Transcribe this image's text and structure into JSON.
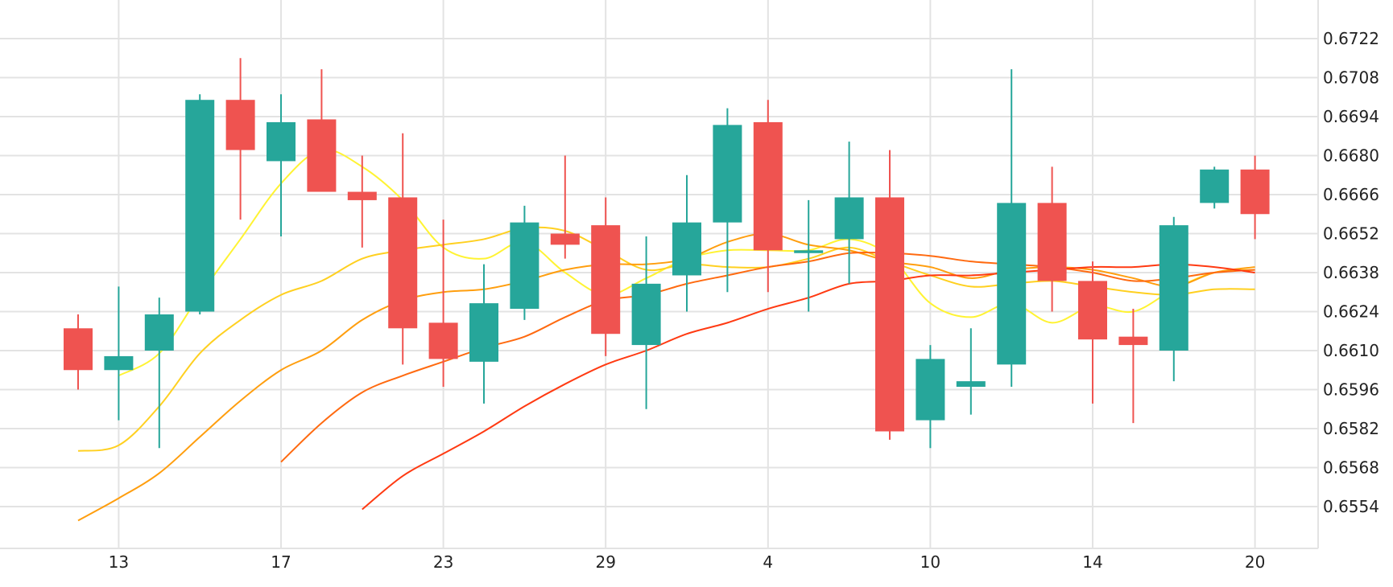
{
  "chart_data": {
    "type": "candlestick",
    "x_tick_labels": [
      "13",
      "17",
      "23",
      "29",
      "4",
      "10",
      "14",
      "20"
    ],
    "y_tick_labels": [
      "0.6722",
      "0.6708",
      "0.6694",
      "0.6680",
      "0.6666",
      "0.6652",
      "0.6638",
      "0.6624",
      "0.6610",
      "0.6596",
      "0.6582",
      "0.6568",
      "0.6554"
    ],
    "ylim": [
      0.654,
      0.6736
    ],
    "grid": true,
    "colors": {
      "up": "#26a69a",
      "down": "#ef5350"
    },
    "candles": [
      {
        "open": 0.6618,
        "high": 0.6623,
        "low": 0.6596,
        "close": 0.6603
      },
      {
        "open": 0.6603,
        "high": 0.6633,
        "low": 0.6585,
        "close": 0.6608
      },
      {
        "open": 0.661,
        "high": 0.6629,
        "low": 0.6575,
        "close": 0.6623
      },
      {
        "open": 0.6624,
        "high": 0.6702,
        "low": 0.6623,
        "close": 0.67
      },
      {
        "open": 0.67,
        "high": 0.6715,
        "low": 0.6657,
        "close": 0.6682
      },
      {
        "open": 0.6678,
        "high": 0.6702,
        "low": 0.6651,
        "close": 0.6692
      },
      {
        "open": 0.6693,
        "high": 0.6711,
        "low": 0.6668,
        "close": 0.6667
      },
      {
        "open": 0.6667,
        "high": 0.668,
        "low": 0.6647,
        "close": 0.6664
      },
      {
        "open": 0.6665,
        "high": 0.6688,
        "low": 0.6605,
        "close": 0.6618
      },
      {
        "open": 0.662,
        "high": 0.6657,
        "low": 0.6597,
        "close": 0.6607
      },
      {
        "open": 0.6606,
        "high": 0.6641,
        "low": 0.6591,
        "close": 0.6627
      },
      {
        "open": 0.6625,
        "high": 0.6662,
        "low": 0.6621,
        "close": 0.6656
      },
      {
        "open": 0.6652,
        "high": 0.668,
        "low": 0.6643,
        "close": 0.6648
      },
      {
        "open": 0.6655,
        "high": 0.6665,
        "low": 0.6608,
        "close": 0.6616
      },
      {
        "open": 0.6612,
        "high": 0.6651,
        "low": 0.6589,
        "close": 0.6634
      },
      {
        "open": 0.6637,
        "high": 0.6673,
        "low": 0.6624,
        "close": 0.6656
      },
      {
        "open": 0.6656,
        "high": 0.6697,
        "low": 0.6631,
        "close": 0.6691
      },
      {
        "open": 0.6692,
        "high": 0.67,
        "low": 0.6631,
        "close": 0.6646
      },
      {
        "open": 0.6645,
        "high": 0.6664,
        "low": 0.6624,
        "close": 0.6646
      },
      {
        "open": 0.665,
        "high": 0.6685,
        "low": 0.6634,
        "close": 0.6665
      },
      {
        "open": 0.6665,
        "high": 0.6682,
        "low": 0.6578,
        "close": 0.6581
      },
      {
        "open": 0.6585,
        "high": 0.6612,
        "low": 0.6575,
        "close": 0.6607
      },
      {
        "open": 0.6597,
        "high": 0.6618,
        "low": 0.6587,
        "close": 0.6599
      },
      {
        "open": 0.6605,
        "high": 0.6711,
        "low": 0.6597,
        "close": 0.6663
      },
      {
        "open": 0.6663,
        "high": 0.6676,
        "low": 0.6624,
        "close": 0.6635
      },
      {
        "open": 0.6635,
        "high": 0.6642,
        "low": 0.6591,
        "close": 0.6614
      },
      {
        "open": 0.6615,
        "high": 0.6625,
        "low": 0.6584,
        "close": 0.6612
      },
      {
        "open": 0.661,
        "high": 0.6658,
        "low": 0.6599,
        "close": 0.6655
      },
      {
        "open": 0.6663,
        "high": 0.6676,
        "low": 0.6661,
        "close": 0.6675
      },
      {
        "open": 0.6675,
        "high": 0.668,
        "low": 0.665,
        "close": 0.6659
      }
    ],
    "moving_averages": [
      {
        "color": "#fff333",
        "values": [
          null,
          0.6601,
          0.6609,
          0.663,
          0.665,
          0.667,
          0.6682,
          0.6676,
          0.6664,
          0.6647,
          0.6643,
          0.6649,
          0.6638,
          0.663,
          0.6636,
          0.6643,
          0.6646,
          0.6646,
          0.6646,
          0.665,
          0.6644,
          0.6627,
          0.6622,
          0.6627,
          0.662,
          0.6626,
          0.6624,
          0.6632,
          0.6638,
          0.6639
        ]
      },
      {
        "color": "#ffd020",
        "values": [
          0.6574,
          0.6576,
          0.659,
          0.6609,
          0.6621,
          0.663,
          0.6635,
          0.6643,
          0.6646,
          0.6648,
          0.665,
          0.6654,
          0.6653,
          0.6646,
          0.6639,
          0.6641,
          0.664,
          0.664,
          0.6643,
          0.6647,
          0.6642,
          0.6637,
          0.6633,
          0.6634,
          0.6635,
          0.6633,
          0.6631,
          0.663,
          0.6632,
          0.6632
        ]
      },
      {
        "color": "#ff9e0e",
        "values": [
          0.6549,
          0.6557,
          0.6566,
          0.6579,
          0.6592,
          0.6603,
          0.661,
          0.6621,
          0.6628,
          0.6631,
          0.6632,
          0.6635,
          0.6639,
          0.6641,
          0.6641,
          0.6643,
          0.6649,
          0.6652,
          0.6648,
          0.6646,
          0.6642,
          0.664,
          0.6636,
          0.6639,
          0.664,
          0.6639,
          0.6636,
          0.6633,
          0.6638,
          0.664
        ]
      },
      {
        "color": "#ff6a10",
        "values": [
          null,
          null,
          null,
          null,
          null,
          0.657,
          0.6584,
          0.6595,
          0.6601,
          0.6606,
          0.6611,
          0.6615,
          0.6622,
          0.6628,
          0.663,
          0.6634,
          0.6637,
          0.664,
          0.6642,
          0.6645,
          0.6645,
          0.6644,
          0.6642,
          0.6641,
          0.664,
          0.6638,
          0.6635,
          0.6636,
          0.6638,
          0.6639
        ]
      },
      {
        "color": "#ff3a12",
        "values": [
          null,
          null,
          null,
          null,
          null,
          null,
          null,
          0.6553,
          0.6565,
          0.6573,
          0.6581,
          0.659,
          0.6598,
          0.6605,
          0.661,
          0.6616,
          0.662,
          0.6625,
          0.6629,
          0.6634,
          0.6635,
          0.6637,
          0.6637,
          0.6638,
          0.6639,
          0.664,
          0.664,
          0.6641,
          0.664,
          0.6638
        ]
      }
    ]
  }
}
